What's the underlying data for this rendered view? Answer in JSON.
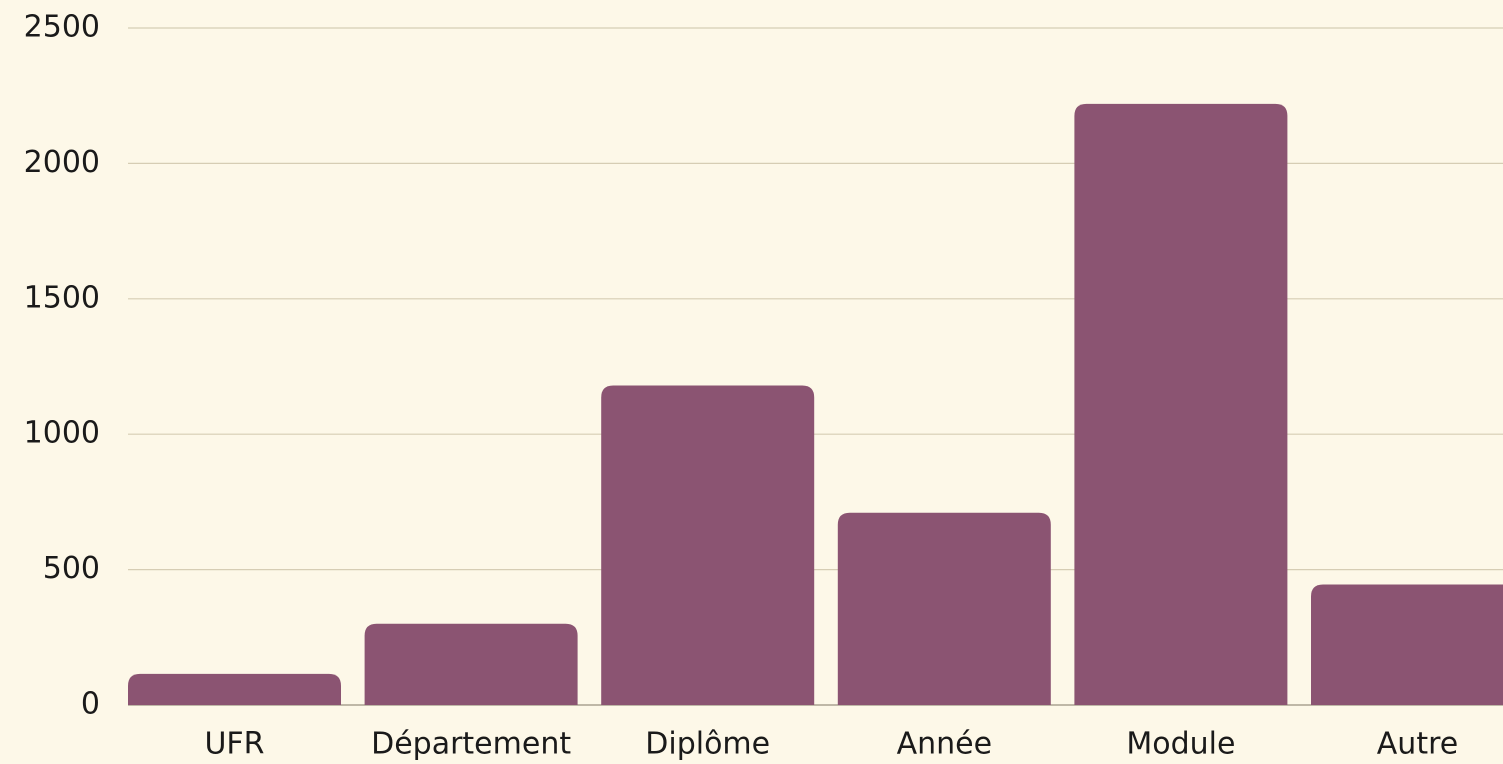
{
  "chart_data": {
    "type": "bar",
    "categories": [
      "UFR",
      "Département",
      "Diplôme",
      "Année",
      "Module",
      "Autre"
    ],
    "values": [
      115,
      300,
      1180,
      710,
      2220,
      445
    ],
    "color": "#8b5472",
    "ylim": [
      0,
      2500
    ],
    "yticks": [
      0,
      500,
      1000,
      1500,
      2000,
      2500
    ],
    "grid": true
  }
}
